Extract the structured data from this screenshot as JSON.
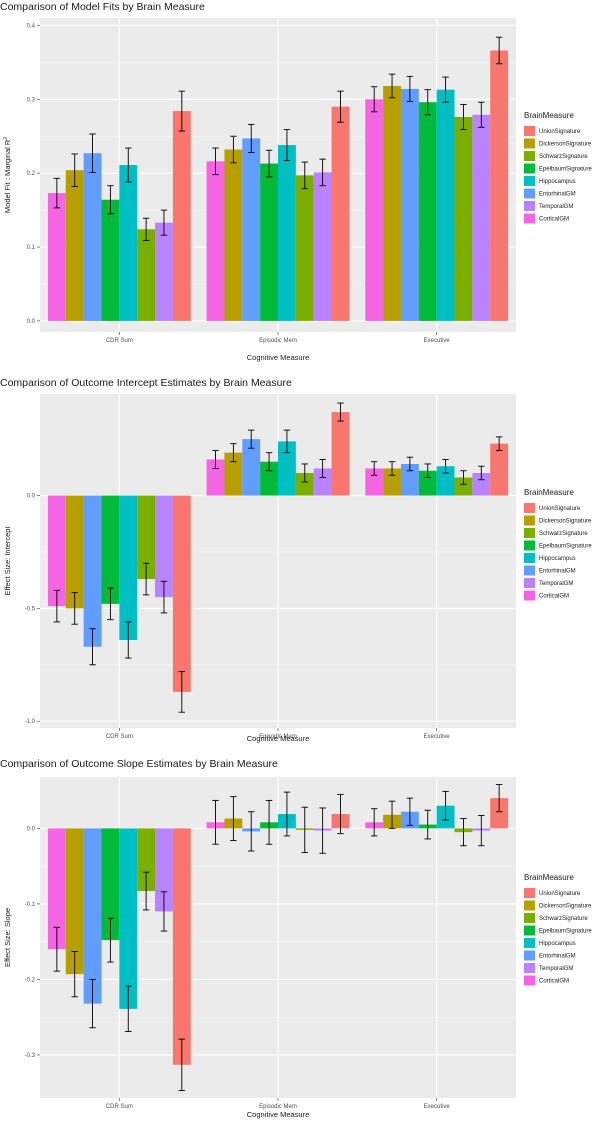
{
  "legend": {
    "title": "BrainMeasure",
    "entries": [
      "UnionSignature",
      "DickersonSignature",
      "SchwarzSignature",
      "EpelbaumSignature",
      "Hippocampus",
      "EntorhinalGM",
      "TemporalGM",
      "CorticalGM"
    ]
  },
  "colors": {
    "CorticalGM": "#f564e3",
    "DickersonSignature": "#b79f00",
    "EntorhinalGM": "#619cff",
    "TemporalGM": "#b983ff",
    "SchwarzSignature": "#7cae00",
    "EpelbaumSignature": "#00ba38",
    "Hippocampus": "#00bfc4",
    "UnionSignature": "#f8766d",
    "panel_bg": "#ebebeb",
    "grid_major": "#ffffff"
  },
  "chart_data": [
    {
      "type": "bar",
      "title": "Comparison of Model Fits by Brain Measure",
      "xlabel": "Cognitive Measure",
      "ylabel": "Model Fit : Marginal R",
      "ylabel_sup": "2",
      "categories": [
        "CDR Sum",
        "Episodic Mem",
        "Executive"
      ],
      "ylim": [
        -0.015,
        0.41
      ],
      "yticks": [
        0.0,
        0.1,
        0.2,
        0.3,
        0.4
      ],
      "ytick_labels": [
        "0.0",
        "0.1",
        "0.2",
        "0.3",
        "0.4"
      ],
      "series": [
        {
          "name": "CorticalGM",
          "values": [
            0.173,
            0.216,
            0.3
          ],
          "errors": [
            0.02,
            0.018,
            0.017
          ]
        },
        {
          "name": "DickersonSignature",
          "values": [
            0.204,
            0.232,
            0.318
          ],
          "errors": [
            0.022,
            0.018,
            0.016
          ]
        },
        {
          "name": "EntorhinalGM",
          "values": [
            0.227,
            0.247,
            0.314
          ],
          "errors": [
            0.026,
            0.019,
            0.017
          ]
        },
        {
          "name": "EpelbaumSignature",
          "values": [
            0.164,
            0.213,
            0.296
          ],
          "errors": [
            0.019,
            0.018,
            0.017
          ]
        },
        {
          "name": "Hippocampus",
          "values": [
            0.211,
            0.238,
            0.313
          ],
          "errors": [
            0.023,
            0.021,
            0.017
          ]
        },
        {
          "name": "SchwarzSignature",
          "values": [
            0.124,
            0.197,
            0.276
          ],
          "errors": [
            0.015,
            0.018,
            0.017
          ]
        },
        {
          "name": "TemporalGM",
          "values": [
            0.133,
            0.201,
            0.279
          ],
          "errors": [
            0.017,
            0.018,
            0.017
          ]
        },
        {
          "name": "UnionSignature",
          "values": [
            0.284,
            0.29,
            0.366
          ],
          "errors": [
            0.027,
            0.021,
            0.018
          ]
        }
      ]
    },
    {
      "type": "bar",
      "title": "Comparison of Outcome Intercept Estimates by Brain Measure",
      "xlabel": "Cognitive Measure",
      "ylabel": "Effect Size: Intercept",
      "categories": [
        "CDR Sum",
        "Episodic Mem",
        "Executive"
      ],
      "ylim": [
        -1.03,
        0.45
      ],
      "yticks": [
        -1.0,
        -0.5,
        0.0
      ],
      "ytick_labels": [
        "-1.0",
        "-0.5",
        "0.0"
      ],
      "series": [
        {
          "name": "CorticalGM",
          "values": [
            -0.49,
            0.16,
            0.12
          ],
          "errors": [
            0.07,
            0.04,
            0.03
          ]
        },
        {
          "name": "DickersonSignature",
          "values": [
            -0.5,
            0.19,
            0.12
          ],
          "errors": [
            0.07,
            0.04,
            0.03
          ]
        },
        {
          "name": "EntorhinalGM",
          "values": [
            -0.67,
            0.25,
            0.14
          ],
          "errors": [
            0.08,
            0.04,
            0.03
          ]
        },
        {
          "name": "EpelbaumSignature",
          "values": [
            -0.48,
            0.15,
            0.11
          ],
          "errors": [
            0.07,
            0.04,
            0.03
          ]
        },
        {
          "name": "Hippocampus",
          "values": [
            -0.64,
            0.24,
            0.13
          ],
          "errors": [
            0.08,
            0.05,
            0.03
          ]
        },
        {
          "name": "SchwarzSignature",
          "values": [
            -0.37,
            0.1,
            0.08
          ],
          "errors": [
            0.07,
            0.04,
            0.03
          ]
        },
        {
          "name": "TemporalGM",
          "values": [
            -0.45,
            0.12,
            0.1
          ],
          "errors": [
            0.07,
            0.04,
            0.03
          ]
        },
        {
          "name": "UnionSignature",
          "values": [
            -0.87,
            0.37,
            0.23
          ],
          "errors": [
            0.09,
            0.04,
            0.03
          ]
        }
      ]
    },
    {
      "type": "bar",
      "title": "Comparison of Outcome Slope Estimates by Brain Measure",
      "xlabel": "Cognitive Measure",
      "ylabel": "Effect Size: Slope",
      "categories": [
        "CDR Sum",
        "Episodic Mem",
        "Executive"
      ],
      "ylim": [
        -0.357,
        0.068
      ],
      "yticks": [
        -0.3,
        -0.2,
        -0.1,
        0.0
      ],
      "ytick_labels": [
        "-0.3",
        "-0.2",
        "-0.1",
        "0.0"
      ],
      "series": [
        {
          "name": "CorticalGM",
          "values": [
            -0.16,
            0.008,
            0.008
          ],
          "errors": [
            0.029,
            0.029,
            0.018
          ]
        },
        {
          "name": "DickersonSignature",
          "values": [
            -0.193,
            0.013,
            0.018
          ],
          "errors": [
            0.03,
            0.029,
            0.018
          ]
        },
        {
          "name": "EntorhinalGM",
          "values": [
            -0.232,
            -0.004,
            0.022
          ],
          "errors": [
            0.032,
            0.026,
            0.018
          ]
        },
        {
          "name": "EpelbaumSignature",
          "values": [
            -0.148,
            0.008,
            0.005
          ],
          "errors": [
            0.029,
            0.029,
            0.019
          ]
        },
        {
          "name": "Hippocampus",
          "values": [
            -0.239,
            0.019,
            0.03
          ],
          "errors": [
            0.03,
            0.029,
            0.019
          ]
        },
        {
          "name": "SchwarzSignature",
          "values": [
            -0.083,
            -0.002,
            -0.005
          ],
          "errors": [
            0.025,
            0.03,
            0.018
          ]
        },
        {
          "name": "TemporalGM",
          "values": [
            -0.11,
            -0.003,
            -0.003
          ],
          "errors": [
            0.026,
            0.03,
            0.02
          ]
        },
        {
          "name": "UnionSignature",
          "values": [
            -0.313,
            0.019,
            0.04
          ],
          "errors": [
            0.034,
            0.026,
            0.018
          ]
        }
      ]
    }
  ]
}
